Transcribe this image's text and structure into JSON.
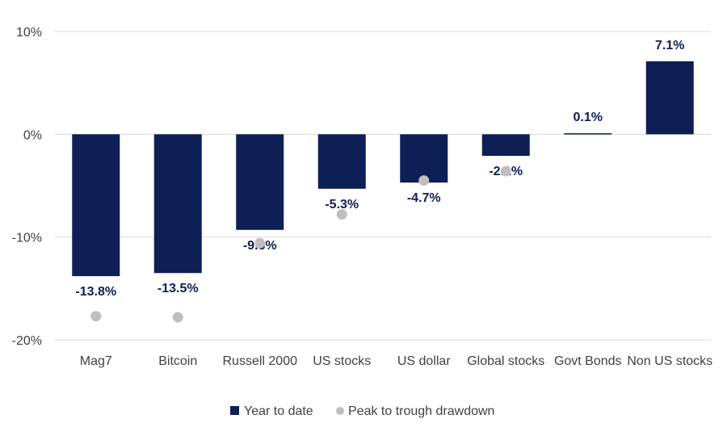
{
  "chart_data": {
    "type": "bar",
    "categories": [
      "Mag7",
      "Bitcoin",
      "Russell 2000",
      "US stocks",
      "US dollar",
      "Global stocks",
      "Govt Bonds",
      "Non US stocks"
    ],
    "series": [
      {
        "name": "Year to date",
        "type": "bar",
        "values": [
          -13.8,
          -13.5,
          -9.3,
          -5.3,
          -4.7,
          -2.1,
          0.1,
          7.1
        ],
        "labels": [
          "-13.8%",
          "-13.5%",
          "-9.3%",
          "-5.3%",
          "-4.7%",
          "-2.1%",
          "0.1%",
          "7.1%"
        ],
        "color": "#0d1f55"
      },
      {
        "name": "Peak to trough drawdown",
        "type": "scatter",
        "values": [
          -17.7,
          -17.8,
          -10.6,
          -7.8,
          -4.5,
          -3.6,
          null,
          null
        ],
        "color": "#bfbfbf"
      }
    ],
    "ylim": [
      -20,
      10
    ],
    "yticks": [
      10,
      0,
      -10,
      -20
    ],
    "ytick_labels": [
      "10%",
      "0%",
      "-10%",
      "-20%"
    ],
    "grid": true,
    "legend_position": "bottom"
  }
}
